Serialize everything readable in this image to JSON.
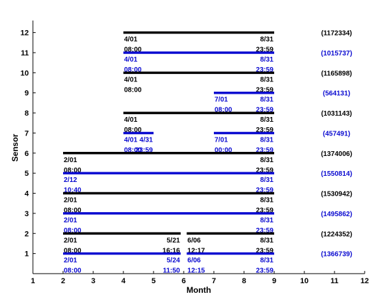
{
  "chart_data": {
    "type": "timeline",
    "xlabel": "Month",
    "ylabel": "Sensor",
    "xlim": [
      1,
      12
    ],
    "ylim": [
      0,
      12.6
    ],
    "x_ticks": [
      1,
      2,
      3,
      4,
      5,
      6,
      7,
      8,
      9,
      10,
      11,
      12
    ],
    "y_ticks": [
      1,
      2,
      3,
      4,
      5,
      6,
      7,
      8,
      9,
      10,
      11,
      12
    ],
    "colors": {
      "black": "#000000",
      "blue": "#0a0ad0"
    },
    "rows": [
      {
        "sensor": 12,
        "color": "black",
        "count": "(1172334)",
        "segments": [
          {
            "x1": 4.0,
            "x2": 9.0,
            "start_date": "4/01",
            "start_time": "08:00",
            "end_date": "8/31",
            "end_time": "23:59"
          }
        ]
      },
      {
        "sensor": 11,
        "color": "blue",
        "count": "(1015737)",
        "segments": [
          {
            "x1": 4.0,
            "x2": 9.0,
            "start_date": "4/01",
            "start_time": "08:00",
            "end_date": "8/31",
            "end_time": "23:59"
          }
        ]
      },
      {
        "sensor": 10,
        "color": "black",
        "count": "(1165898)",
        "segments": [
          {
            "x1": 4.0,
            "x2": 9.0,
            "start_date": "4/01",
            "start_time": "08:00",
            "end_date": "8/31",
            "end_time": "23:59"
          }
        ]
      },
      {
        "sensor": 9,
        "color": "blue",
        "count": "(564131)",
        "segments": [
          {
            "x1": 7.0,
            "x2": 9.0,
            "start_date": "7/01",
            "start_time": "08:00",
            "end_date": "8/31",
            "end_time": "23:59"
          }
        ]
      },
      {
        "sensor": 8,
        "color": "black",
        "count": "(1031143)",
        "segments": [
          {
            "x1": 4.0,
            "x2": 9.0,
            "start_date": "4/01",
            "start_time": "08:00",
            "end_date": "8/31",
            "end_time": "23:59"
          }
        ]
      },
      {
        "sensor": 7,
        "color": "blue",
        "count": "(457491)",
        "segments": [
          {
            "x1": 4.0,
            "x2": 5.0,
            "start_date": "4/01",
            "start_time": "08:00",
            "end_date": "4/31",
            "end_time": "23:59"
          },
          {
            "x1": 7.0,
            "x2": 9.0,
            "start_date": "7/01",
            "start_time": "00:00",
            "end_date": "8/31",
            "end_time": "23:59"
          }
        ]
      },
      {
        "sensor": 6,
        "color": "black",
        "count": "(1374006)",
        "segments": [
          {
            "x1": 2.0,
            "x2": 9.0,
            "start_date": "2/01",
            "start_time": "08:00",
            "end_date": "8/31",
            "end_time": "23:59"
          }
        ]
      },
      {
        "sensor": 5,
        "color": "blue",
        "count": "(1550814)",
        "segments": [
          {
            "x1": 2.0,
            "x2": 9.0,
            "start_date": "2/12",
            "start_time": "10:40",
            "end_date": "8/31",
            "end_time": "23:59"
          }
        ]
      },
      {
        "sensor": 4,
        "color": "black",
        "count": "(1530942)",
        "segments": [
          {
            "x1": 2.0,
            "x2": 9.0,
            "start_date": "2/01",
            "start_time": "08:00",
            "end_date": "8/31",
            "end_time": "23:59"
          }
        ]
      },
      {
        "sensor": 3,
        "color": "blue",
        "count": "(1495862)",
        "segments": [
          {
            "x1": 2.0,
            "x2": 9.0,
            "start_date": "2/01",
            "start_time": "08:00",
            "end_date": "8/31",
            "end_time": "23:59"
          }
        ]
      },
      {
        "sensor": 2,
        "color": "black",
        "count": "(1224352)",
        "segments": [
          {
            "x1": 2.0,
            "x2": 5.9,
            "start_date": "2/01",
            "start_time": "08:00",
            "end_date": "5/21",
            "end_time": "16:16"
          },
          {
            "x1": 6.1,
            "x2": 9.0,
            "start_date": "6/06",
            "start_time": "12:17",
            "end_date": "8/31",
            "end_time": "23:59"
          }
        ]
      },
      {
        "sensor": 1,
        "color": "blue",
        "count": "(1366739)",
        "segments": [
          {
            "x1": 2.0,
            "x2": 5.9,
            "start_date": "2/01",
            "start_time": "08:00",
            "end_date": "5/24",
            "end_time": "11:50"
          },
          {
            "x1": 6.1,
            "x2": 9.0,
            "start_date": "6/06",
            "start_time": "12:15",
            "end_date": "8/31",
            "end_time": "23:59"
          }
        ]
      }
    ]
  }
}
